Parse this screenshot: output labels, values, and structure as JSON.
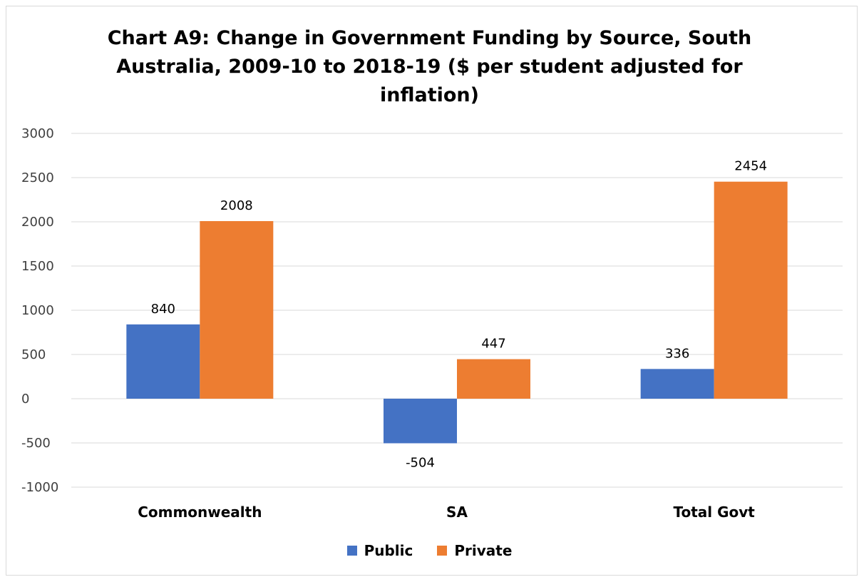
{
  "chart_data": {
    "type": "bar",
    "title_lines": [
      "Chart A9: Change in Government Funding by Source, South",
      "Australia, 2009-10 to 2018-19 ($ per student adjusted for",
      "inflation)"
    ],
    "categories": [
      "Commonwealth",
      "SA",
      "Total Govt"
    ],
    "series": [
      {
        "name": "Public",
        "color": "#4472C4",
        "values": [
          840,
          -504,
          336
        ]
      },
      {
        "name": "Private",
        "color": "#ED7D31",
        "values": [
          2008,
          447,
          2454
        ]
      }
    ],
    "ylim": [
      -1000,
      3000
    ],
    "yticks": [
      3000,
      2500,
      2000,
      1500,
      1000,
      500,
      0,
      -500,
      -1000
    ],
    "grid": true,
    "legend": "bottom"
  }
}
